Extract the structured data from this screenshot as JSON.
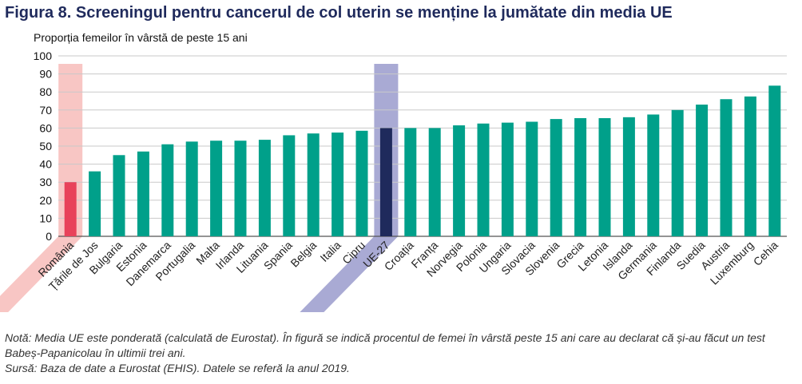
{
  "title": "Figura 8. Screeningul pentru cancerul de col uterin se menține la jumătate din media UE",
  "chart_data": {
    "type": "bar",
    "ylabel": "Proporția femeilor în vârstă de peste 15 ani",
    "ylim": [
      0,
      100
    ],
    "yticks": [
      0,
      10,
      20,
      30,
      40,
      50,
      60,
      70,
      80,
      90,
      100
    ],
    "grid": true,
    "categories": [
      "România",
      "Țările de Jos",
      "Bulgaria",
      "Estonia",
      "Danemarca",
      "Portugalia",
      "Malta",
      "Irlanda",
      "Lituania",
      "Spania",
      "Belgia",
      "Italia",
      "Cipru",
      "UE-27",
      "Croația",
      "Franța",
      "Norvegia",
      "Polonia",
      "Ungaria",
      "Slovacia",
      "Slovenia",
      "Grecia",
      "Letonia",
      "Islanda",
      "Germania",
      "Finlanda",
      "Suedia",
      "Austria",
      "Luxemburg",
      "Cehia"
    ],
    "values": [
      30,
      36,
      45,
      47,
      51,
      52.5,
      53,
      53,
      53.5,
      56,
      57,
      57.5,
      58.5,
      60,
      60,
      60,
      61.5,
      62.5,
      63,
      63.5,
      65,
      65.5,
      65.5,
      66,
      67.5,
      70,
      73,
      76,
      77.5,
      83.5
    ],
    "highlight": [
      "România",
      "UE-27"
    ],
    "colors": {
      "default": "#00a08a",
      "România": "#e8425a",
      "UE-27": "#1f2a5c",
      "România_band": "#f8c6c4",
      "UE-27_band": "#a9aad4"
    }
  },
  "note": {
    "line1": "Notă: Media UE este ponderată (calculată de Eurostat). În figură se indică procentul de femei în vârstă peste 15 ani care au declarat că și-au făcut un test Babeș-Papanicolau în ultimii trei ani.",
    "line2": "Sursă: Baza de date a Eurostat (EHIS). Datele se referă la anul 2019."
  }
}
